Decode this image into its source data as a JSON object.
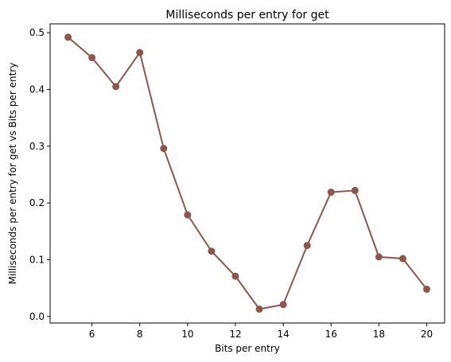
{
  "chart_data": {
    "type": "line",
    "title": "Milliseconds per entry for get",
    "xlabel": "Bits per entry",
    "ylabel": "Milliseconds per entry for get vs Bits per entry",
    "x": [
      5,
      6,
      7,
      8,
      9,
      10,
      11,
      12,
      13,
      14,
      15,
      16,
      17,
      18,
      19,
      20
    ],
    "series": [
      {
        "values": [
          0.492,
          0.456,
          0.405,
          0.465,
          0.296,
          0.179,
          0.115,
          0.071,
          0.013,
          0.021,
          0.125,
          0.219,
          0.222,
          0.105,
          0.102,
          0.048
        ],
        "color": "#8c564b"
      }
    ],
    "xlim": [
      4.25,
      20.75
    ],
    "ylim": [
      -0.0115,
      0.5155
    ],
    "xticks": [
      6,
      8,
      10,
      12,
      14,
      16,
      18,
      20
    ],
    "yticks": [
      0.0,
      0.1,
      0.2,
      0.3,
      0.4,
      0.5
    ],
    "xtick_labels": [
      "6",
      "8",
      "10",
      "12",
      "14",
      "16",
      "18",
      "20"
    ],
    "ytick_labels": [
      "0.0",
      "0.1",
      "0.2",
      "0.3",
      "0.4",
      "0.5"
    ],
    "grid": false,
    "marker": "circle"
  }
}
